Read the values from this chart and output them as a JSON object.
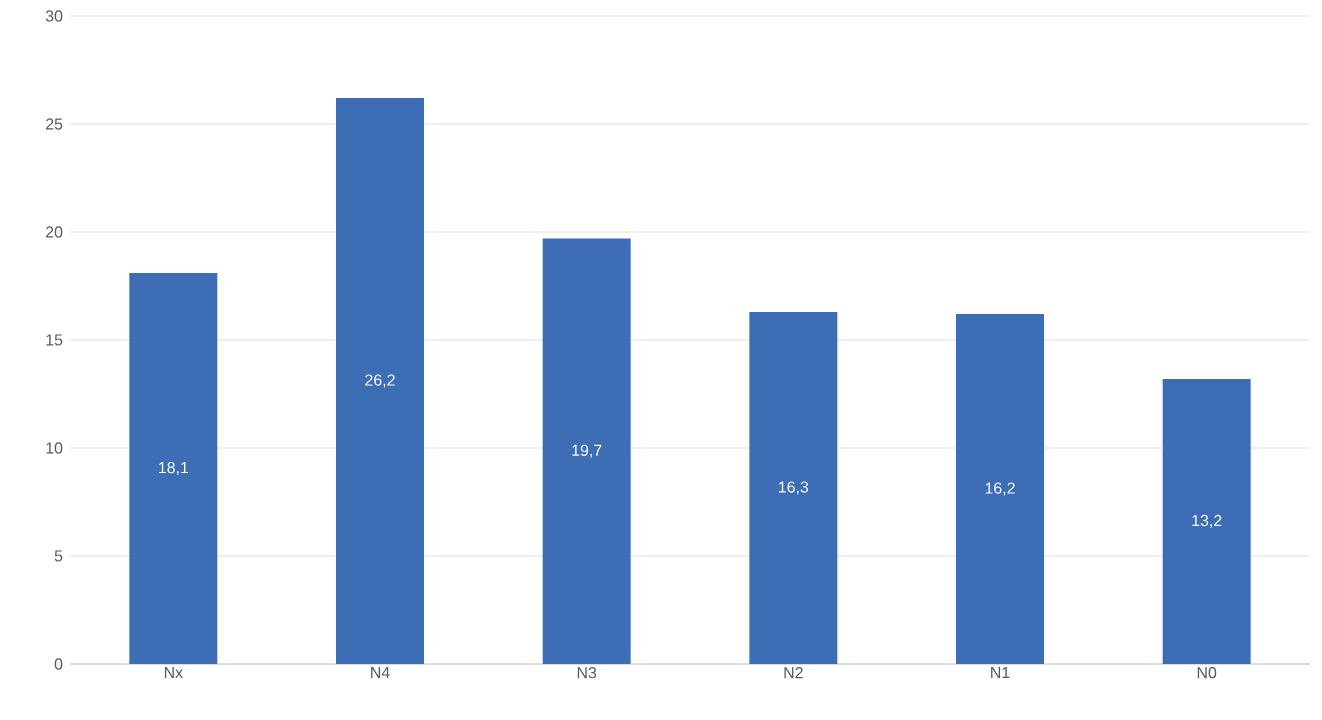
{
  "chart_data": {
    "type": "bar",
    "categories": [
      "Nx",
      "N4",
      "N3",
      "N2",
      "N1",
      "N0"
    ],
    "values": [
      18.1,
      26.2,
      19.7,
      16.3,
      16.2,
      13.2
    ],
    "value_labels": [
      "18,1",
      "26,2",
      "19,7",
      "16,3",
      "16,2",
      "13,2"
    ],
    "color": "#3d6db5",
    "ylim": [
      0,
      30
    ],
    "yticks": [
      0,
      5,
      10,
      15,
      20,
      25,
      30
    ],
    "grid": "y"
  }
}
